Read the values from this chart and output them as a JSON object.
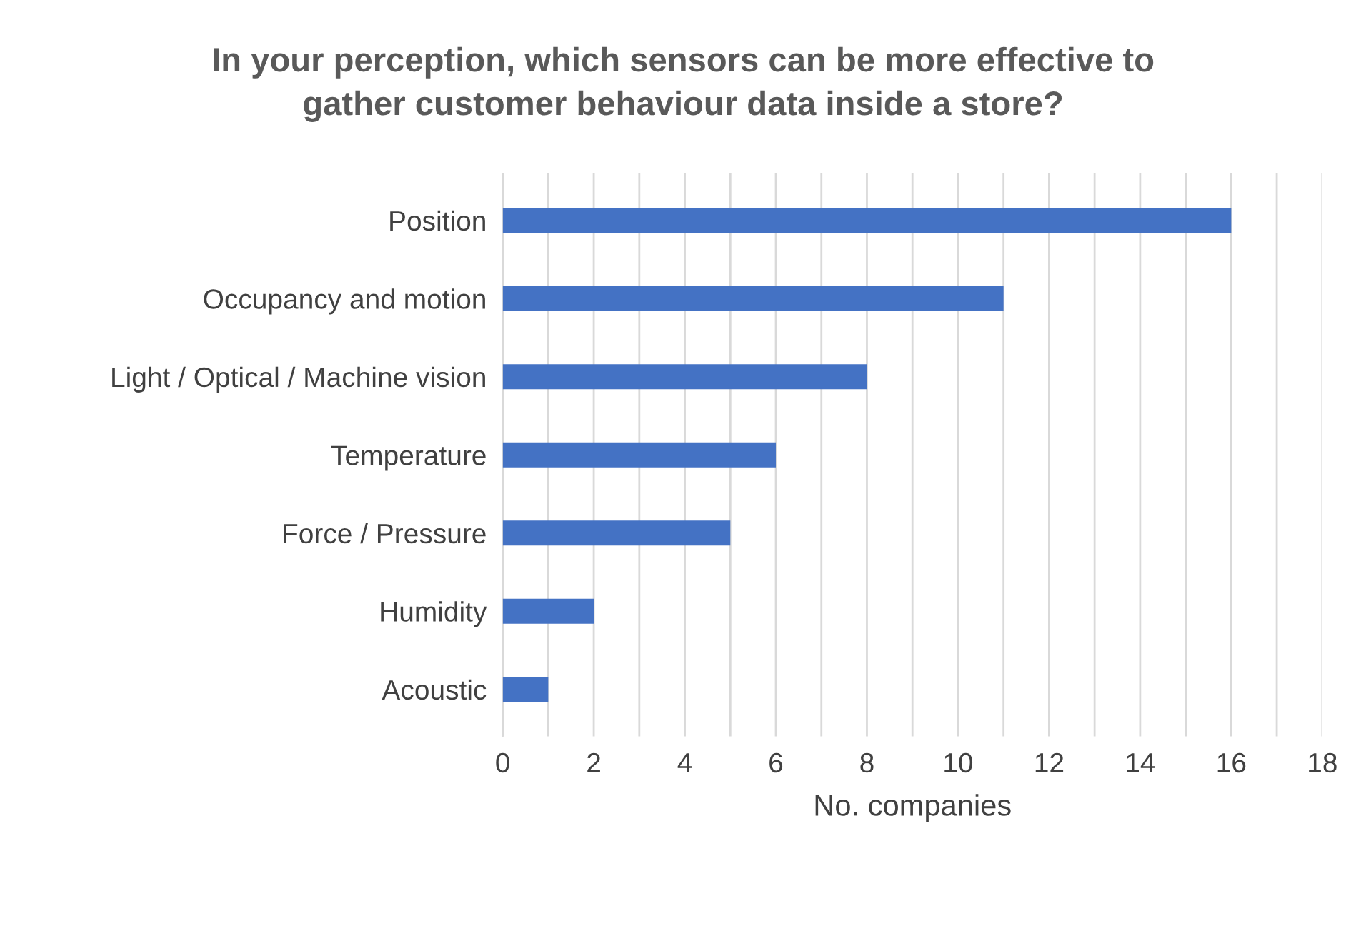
{
  "chart_data": {
    "type": "bar",
    "orientation": "horizontal",
    "title": "In your perception, which sensors can be more effective to\ngather customer behaviour data inside a store?",
    "xlabel": "No. companies",
    "categories": [
      "Position",
      "Occupancy and motion",
      "Light / Optical / Machine vision",
      "Temperature",
      "Force / Pressure",
      "Humidity",
      "Acoustic"
    ],
    "values": [
      16,
      11,
      8,
      6,
      5,
      2,
      1
    ],
    "color": "#4472c4",
    "xlim": [
      0,
      18
    ],
    "xticks": [
      0,
      {
        "value": 1,
        "label": null
      },
      2,
      {
        "value": 3,
        "label": null
      },
      4,
      {
        "value": 5,
        "label": null
      },
      6,
      {
        "value": 7,
        "label": null
      },
      8,
      {
        "value": 9,
        "label": null
      },
      10,
      {
        "value": 11,
        "label": null
      },
      12,
      {
        "value": 13,
        "label": null
      },
      14,
      {
        "value": 15,
        "label": null
      },
      16,
      {
        "value": 17,
        "label": null
      },
      18
    ],
    "grid": "x"
  }
}
